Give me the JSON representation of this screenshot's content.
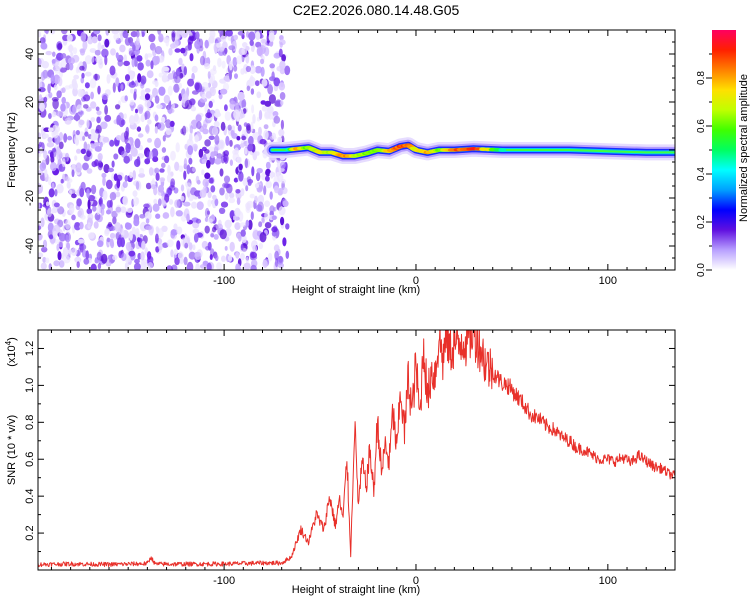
{
  "title": "C2E2.2026.080.14.48.G05",
  "chart_data": [
    {
      "type": "heatmap",
      "xlabel": "Height of straight line (km)",
      "ylabel": "Frequency (Hz)",
      "xlim": [
        -197,
        135
      ],
      "ylim": [
        -50,
        50
      ],
      "xticks": [
        -100,
        0,
        100
      ],
      "xtick_labels": [
        "-100",
        "0",
        "100"
      ],
      "yticks": [
        -40,
        -20,
        0,
        20,
        40
      ],
      "ytick_labels": [
        "-40",
        "-20",
        "0",
        "20",
        "40"
      ],
      "noise_region_x": [
        -197,
        -67
      ],
      "signal_track": {
        "x": [
          -75,
          -68,
          -62,
          -56,
          -50,
          -44,
          -38,
          -32,
          -26,
          -20,
          -14,
          -8,
          -4,
          0,
          6,
          12,
          20,
          30,
          45,
          60,
          80,
          100,
          120,
          135
        ],
        "freq": [
          0,
          0,
          0.5,
          1,
          -1,
          -1,
          -2.5,
          -2.5,
          -1.5,
          0,
          -0.5,
          1.5,
          2,
          0,
          -1,
          0,
          0,
          0.5,
          0,
          0,
          0,
          -0.5,
          -1,
          -1
        ],
        "amplitude": [
          0.2,
          0.35,
          0.8,
          0.6,
          0.75,
          0.65,
          0.85,
          0.7,
          0.6,
          0.6,
          0.75,
          0.9,
          0.85,
          0.7,
          0.8,
          0.6,
          0.85,
          0.9,
          0.5,
          0.45,
          0.35,
          0.35,
          0.3,
          0.3
        ]
      },
      "colorbar": {
        "label": "Normalized spectral amplitude",
        "range": [
          0,
          1
        ],
        "ticks": [
          0.0,
          0.2,
          0.4,
          0.6,
          0.8
        ],
        "tick_labels": [
          "0.0",
          "0.2",
          "0.4",
          "0.6",
          "0.8"
        ],
        "colors": [
          "#ffffff",
          "#b8a0ff",
          "#6010e0",
          "#0000ff",
          "#00a0ff",
          "#00ffff",
          "#00ff60",
          "#40ff00",
          "#c0ff00",
          "#ffe000",
          "#ff8000",
          "#ff2000",
          "#ff0060"
        ]
      }
    },
    {
      "type": "line",
      "xlabel": "Height of straight line (km)",
      "ylabel": "SNR (10 * v/v)",
      "y_multiplier_label": "(x10",
      "y_multiplier_exp": "4",
      "xlim": [
        -197,
        135
      ],
      "ylim": [
        0,
        13000
      ],
      "xticks": [
        -100,
        0,
        100
      ],
      "xtick_labels": [
        "-100",
        "0",
        "100"
      ],
      "yticks": [
        2000,
        4000,
        6000,
        8000,
        10000,
        12000
      ],
      "ytick_labels": [
        "0.2",
        "0.4",
        "0.6",
        "0.8",
        "1.0",
        "1.2"
      ],
      "color": "#e8302a",
      "series": [
        {
          "name": "SNR",
          "x": [
            -197,
            -180,
            -160,
            -140,
            -138,
            -136,
            -120,
            -100,
            -80,
            -70,
            -65,
            -60,
            -56,
            -52,
            -48,
            -45,
            -42,
            -40,
            -38,
            -36,
            -34,
            -32,
            -30,
            -28,
            -26,
            -24,
            -22,
            -20,
            -18,
            -16,
            -14,
            -12,
            -10,
            -8,
            -6,
            -4,
            -2,
            0,
            2,
            4,
            6,
            8,
            10,
            12,
            14,
            16,
            18,
            20,
            22,
            24,
            26,
            28,
            30,
            32,
            34,
            36,
            38,
            40,
            44,
            48,
            52,
            56,
            60,
            64,
            68,
            72,
            76,
            80,
            84,
            88,
            92,
            96,
            100,
            104,
            108,
            112,
            116,
            120,
            124,
            128,
            132,
            135
          ],
          "y": [
            300,
            330,
            300,
            350,
            700,
            320,
            320,
            330,
            380,
            380,
            700,
            2200,
            1500,
            3000,
            2200,
            4000,
            2400,
            3800,
            2800,
            6000,
            800,
            8000,
            3500,
            5800,
            4500,
            6500,
            4200,
            8200,
            5200,
            6800,
            5800,
            8600,
            6400,
            9800,
            7400,
            10400,
            8600,
            11200,
            8200,
            12300,
            9200,
            10800,
            10600,
            12700,
            11400,
            12800,
            11800,
            12400,
            12000,
            12600,
            12400,
            12800,
            12900,
            12500,
            12000,
            11300,
            11000,
            10800,
            10200,
            10000,
            9500,
            9000,
            8400,
            8200,
            7800,
            7600,
            7200,
            7000,
            6600,
            6500,
            6200,
            6000,
            6000,
            5900,
            6100,
            5800,
            6200,
            5900,
            5600,
            5500,
            5200,
            5100
          ]
        }
      ]
    }
  ]
}
